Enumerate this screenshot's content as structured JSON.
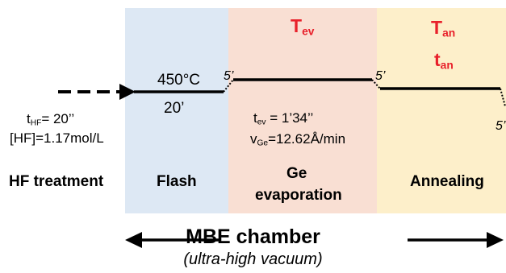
{
  "colors": {
    "flash_bg": "#dde8f4",
    "evaporation_bg": "#f9dfd3",
    "annealing_bg": "#fdefca",
    "accent_red": "#e8202a",
    "line": "#000000"
  },
  "phases": {
    "hf": {
      "label": "HF treatment",
      "t": "t",
      "t_sub": "HF",
      "t_val": "= 20’’",
      "conc": "[HF]=1.17mol/L"
    },
    "flash": {
      "label": "Flash",
      "temp": "450°C",
      "time": "20’"
    },
    "ge": {
      "label_line1": "Ge",
      "label_line2": "evaporation",
      "T": "T",
      "T_sub": "ev",
      "t": "t",
      "t_sub": "ev",
      "t_val": " = 1’34’’",
      "v": "v",
      "v_sub": "Ge",
      "v_val": "=12.62Å/min"
    },
    "anneal": {
      "label": "Annealing",
      "T": "T",
      "T_sub": "an",
      "t": "t",
      "t_sub": "an"
    }
  },
  "transitions": {
    "ramp1": "5’",
    "ramp2": "5’",
    "ramp3": "5’"
  },
  "chamber": {
    "label": "MBE chamber",
    "sublabel": "(ultra-high vacuum)"
  }
}
